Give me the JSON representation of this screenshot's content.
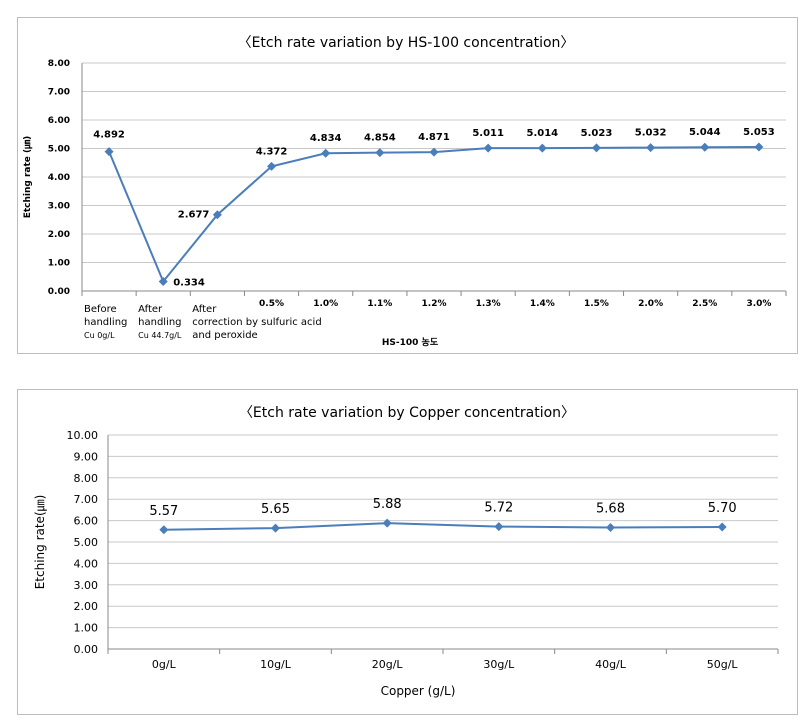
{
  "chart_data": [
    {
      "type": "line",
      "title": "〈Etch rate variation by HS-100 concentration〉",
      "ylabel": "Etching rate (㎛)",
      "xlabel": "HS-100 농도",
      "ylim": [
        0,
        8
      ],
      "yticks": [
        "0.00",
        "1.00",
        "2.00",
        "3.00",
        "4.00",
        "5.00",
        "6.00",
        "7.00",
        "8.00"
      ],
      "categories": [
        [
          "Before",
          "handling",
          "Cu 0g/L"
        ],
        [
          "After",
          "handling",
          "Cu 44.7g/L"
        ],
        [
          "After",
          "correction by sulfuric acid",
          "and peroxide"
        ],
        [
          "0.5%"
        ],
        [
          "1.0%"
        ],
        [
          "1.1%"
        ],
        [
          "1.2%"
        ],
        [
          "1.3%"
        ],
        [
          "1.4%"
        ],
        [
          "1.5%"
        ],
        [
          "2.0%"
        ],
        [
          "2.5%"
        ],
        [
          "3.0%"
        ]
      ],
      "values": [
        4.892,
        0.334,
        2.677,
        4.372,
        4.834,
        4.854,
        4.871,
        5.011,
        5.014,
        5.023,
        5.032,
        5.044,
        5.053
      ],
      "value_labels": [
        "4.892",
        "0.334",
        "2.677",
        "4.372",
        "4.834",
        "4.854",
        "4.871",
        "5.011",
        "5.014",
        "5.023",
        "5.032",
        "5.044",
        "5.053"
      ],
      "grid": true,
      "color": "#4a7ebb"
    },
    {
      "type": "line",
      "title": "〈Etch rate variation by Copper concentration〉",
      "ylabel": "Etching rate(㎛)",
      "xlabel": "Copper (g/L)",
      "ylim": [
        0,
        10
      ],
      "yticks": [
        "0.00",
        "1.00",
        "2.00",
        "3.00",
        "4.00",
        "5.00",
        "6.00",
        "7.00",
        "8.00",
        "9.00",
        "10.00"
      ],
      "categories": [
        "0g/L",
        "10g/L",
        "20g/L",
        "30g/L",
        "40g/L",
        "50g/L"
      ],
      "values": [
        5.57,
        5.65,
        5.88,
        5.72,
        5.68,
        5.7
      ],
      "value_labels": [
        "5.57",
        "5.65",
        "5.88",
        "5.72",
        "5.68",
        "5.70"
      ],
      "grid": true,
      "color": "#4a7ebb"
    }
  ]
}
